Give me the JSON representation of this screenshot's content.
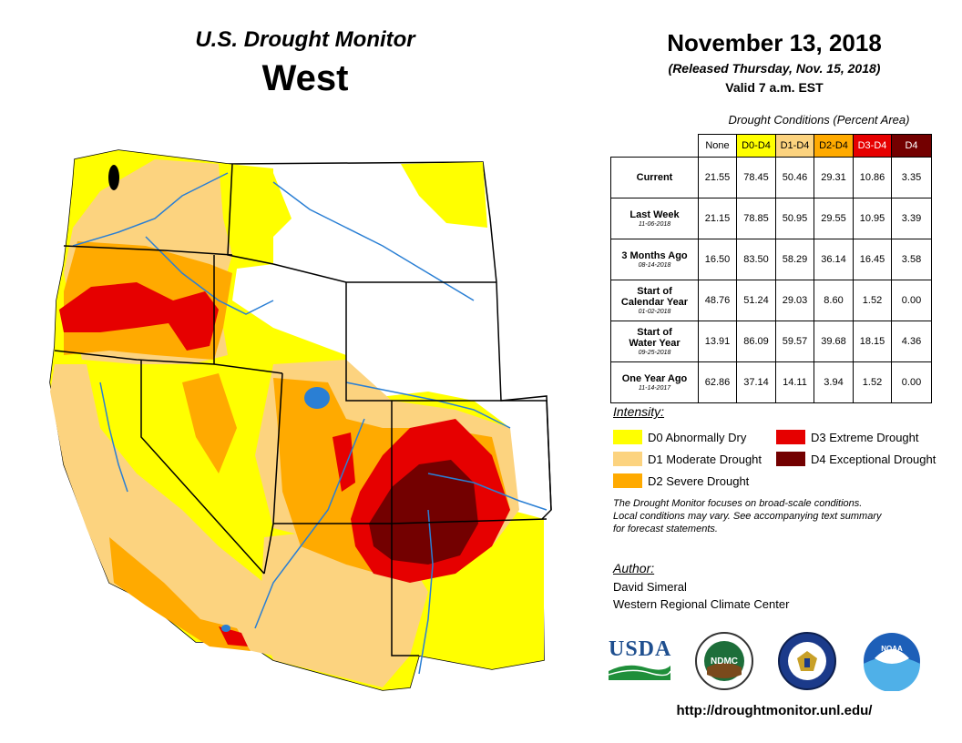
{
  "header": {
    "subtitle": "U.S. Drought Monitor",
    "region": "West",
    "date": "November 13, 2018",
    "released": "(Released Thursday, Nov. 15, 2018)",
    "valid": "Valid 7 a.m. EST"
  },
  "table": {
    "caption": "Drought Conditions (Percent Area)",
    "columns": [
      {
        "label": "None",
        "color": "#ffffff",
        "text_color": "#000000"
      },
      {
        "label": "D0-D4",
        "color": "#ffff00",
        "text_color": "#000000"
      },
      {
        "label": "D1-D4",
        "color": "#fcd37f",
        "text_color": "#000000"
      },
      {
        "label": "D2-D4",
        "color": "#ffaa00",
        "text_color": "#000000"
      },
      {
        "label": "D3-D4",
        "color": "#e60000",
        "text_color": "#ffffff"
      },
      {
        "label": "D4",
        "color": "#730000",
        "text_color": "#ffffff"
      }
    ],
    "rows": [
      {
        "label1": "Current",
        "label2": "",
        "date": "",
        "values": [
          "21.55",
          "78.45",
          "50.46",
          "29.31",
          "10.86",
          "3.35"
        ]
      },
      {
        "label1": "Last Week",
        "label2": "",
        "date": "11-06-2018",
        "values": [
          "21.15",
          "78.85",
          "50.95",
          "29.55",
          "10.95",
          "3.39"
        ]
      },
      {
        "label1": "3 Months Ago",
        "label2": "",
        "date": "08-14-2018",
        "values": [
          "16.50",
          "83.50",
          "58.29",
          "36.14",
          "16.45",
          "3.58"
        ]
      },
      {
        "label1": "Start of",
        "label2": "Calendar Year",
        "date": "01-02-2018",
        "values": [
          "48.76",
          "51.24",
          "29.03",
          "8.60",
          "1.52",
          "0.00"
        ]
      },
      {
        "label1": "Start of",
        "label2": "Water Year",
        "date": "09-25-2018",
        "values": [
          "13.91",
          "86.09",
          "59.57",
          "39.68",
          "18.15",
          "4.36"
        ]
      },
      {
        "label1": "One Year Ago",
        "label2": "",
        "date": "11-14-2017",
        "values": [
          "62.86",
          "37.14",
          "14.11",
          "3.94",
          "1.52",
          "0.00"
        ]
      }
    ]
  },
  "legend": {
    "title": "Intensity:",
    "items": [
      {
        "label": "D0 Abnormally Dry",
        "color": "#ffff00"
      },
      {
        "label": "D1 Moderate Drought",
        "color": "#fcd37f"
      },
      {
        "label": "D2 Severe Drought",
        "color": "#ffaa00"
      },
      {
        "label": "D3 Extreme Drought",
        "color": "#e60000"
      },
      {
        "label": "D4 Exceptional Drought",
        "color": "#730000"
      }
    ]
  },
  "note": {
    "line1": "The Drought Monitor focuses on broad-scale conditions.",
    "line2": "Local conditions may vary. See accompanying text summary",
    "line3": "for forecast statements."
  },
  "author": {
    "label": "Author:",
    "name": "David Simeral",
    "org": "Western Regional Climate Center"
  },
  "logos": {
    "usda": "USDA",
    "ndmc": "NDMC",
    "noaa": "NOAA"
  },
  "map": {
    "water_color": "#2a7fd4",
    "boundary_color": "#000000"
  },
  "url": "http://droughtmonitor.unl.edu/"
}
